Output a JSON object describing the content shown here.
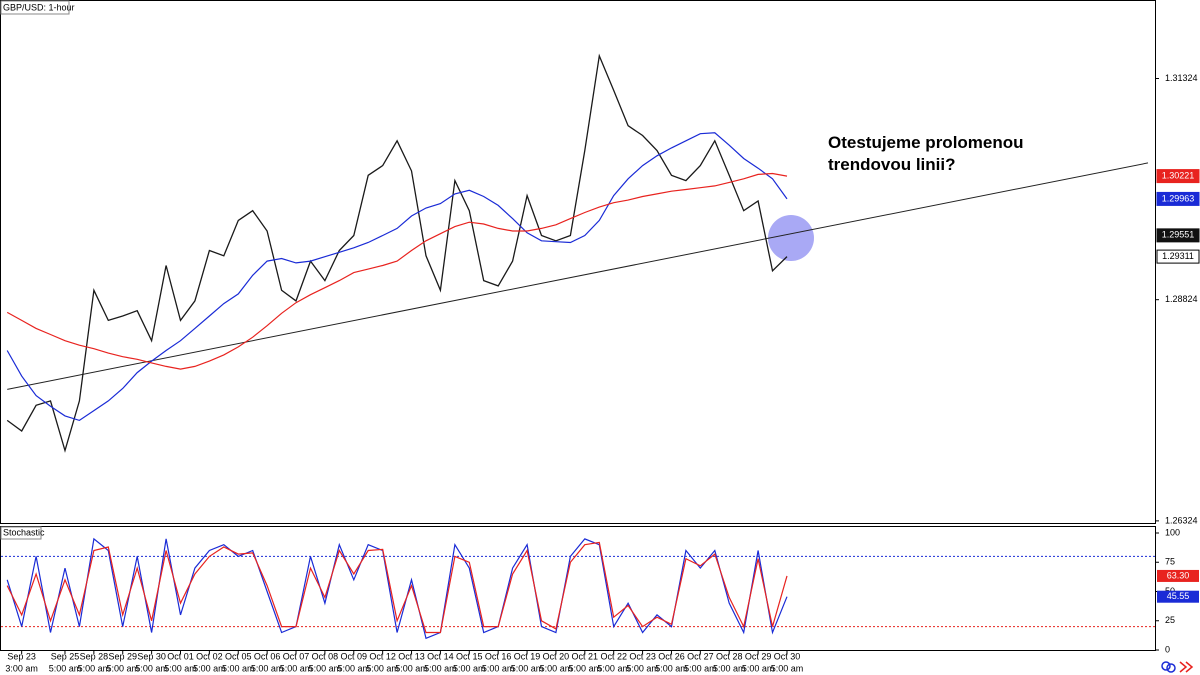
{
  "chart_data": [
    {
      "type": "line",
      "title": "GBP/USD: 1-hour",
      "annotation": [
        "Otestujeme prolomenou",
        "trendovou linii?"
      ],
      "categories": [
        null,
        "Sep 23",
        null,
        null,
        "Sep 25",
        null,
        "Sep 28",
        null,
        "Sep 29",
        null,
        "Sep 30",
        null,
        "Oct 01",
        null,
        "Oct 02",
        null,
        "Oct 05",
        null,
        "Oct 06",
        null,
        "Oct 07",
        null,
        "Oct 08",
        null,
        "Oct 09",
        null,
        "Oct 12",
        null,
        "Oct 13",
        null,
        "Oct 14",
        null,
        "Oct 15",
        null,
        "Oct 16",
        null,
        "Oct 19",
        null,
        "Oct 20",
        null,
        "Oct 21",
        null,
        "Oct 22",
        null,
        "Oct 23",
        null,
        "Oct 26",
        null,
        "Oct 27",
        null,
        "Oct 28",
        null,
        "Oct 29",
        null,
        "Oct 30",
        null
      ],
      "category_times": [
        null,
        "3:00 am",
        null,
        null,
        "5:00 am",
        null,
        "5:00 am",
        null,
        "5:00 am",
        null,
        "5:00 am",
        null,
        "5:00 am",
        null,
        "5:00 am",
        null,
        "5:00 am",
        null,
        "5:00 am",
        null,
        "5:00 am",
        null,
        "5:00 am",
        null,
        "5:00 am",
        null,
        "5:00 am",
        null,
        "5:00 am",
        null,
        "5:00 am",
        null,
        "5:00 am",
        null,
        "5:00 am",
        null,
        "5:00 am",
        null,
        "5:00 am",
        null,
        "5:00 am",
        null,
        "5:00 am",
        null,
        "5:00 am",
        null,
        "5:00 am",
        null,
        "5:00 am",
        null,
        "5:00 am",
        null,
        "5:00 am",
        null,
        "5:00 am",
        null
      ],
      "series": [
        {
          "color": "#1a1a1a",
          "values": [
            1.2746,
            1.2734,
            1.2763,
            1.2768,
            1.2712,
            1.2768,
            1.2893,
            1.2859,
            1.2864,
            1.287,
            1.2836,
            1.2921,
            1.2859,
            1.2881,
            1.2938,
            1.2932,
            1.2972,
            1.2983,
            1.296,
            1.2893,
            1.2881,
            1.2926,
            1.2904,
            1.2938,
            1.2955,
            1.3023,
            1.3034,
            1.3062,
            1.3028,
            1.2932,
            1.2893,
            1.3017,
            1.2983,
            1.2904,
            1.2898,
            1.2926,
            1.3,
            1.2955,
            1.2949,
            1.2955,
            1.3051,
            1.3158,
            1.3119,
            1.3079,
            1.3068,
            1.3051,
            1.3023,
            1.3017,
            1.3034,
            1.3062,
            1.3023,
            1.2983,
            1.2994,
            1.2915,
            1.29311,
            null
          ]
        },
        {
          "color": "#1a2bd6",
          "values": [
            1.2825,
            1.2796,
            1.2774,
            1.2762,
            1.2751,
            1.2746,
            1.2757,
            1.2768,
            1.2782,
            1.28,
            1.2813,
            1.2825,
            1.2836,
            1.285,
            1.2864,
            1.2878,
            1.2889,
            1.291,
            1.2926,
            1.2929,
            1.2924,
            1.2926,
            1.2931,
            1.2936,
            1.2941,
            1.2947,
            1.2955,
            1.2963,
            1.2977,
            1.2986,
            1.2991,
            1.3002,
            1.3006,
            1.2999,
            1.2989,
            1.2974,
            1.2958,
            1.2949,
            1.2948,
            1.2947,
            1.2955,
            1.2972,
            1.3,
            1.3019,
            1.3034,
            1.3045,
            1.3054,
            1.3062,
            1.307,
            1.3071,
            1.3057,
            1.3042,
            1.3031,
            1.3019,
            1.29963,
            null
          ]
        },
        {
          "color": "#e8231f",
          "values": [
            1.2868,
            1.2859,
            1.285,
            1.2843,
            1.2836,
            1.2831,
            1.2827,
            1.2822,
            1.2818,
            1.2815,
            1.2811,
            1.2807,
            1.2804,
            1.2807,
            1.2813,
            1.282,
            1.2829,
            1.284,
            1.2853,
            1.2867,
            1.2879,
            1.2888,
            1.2896,
            1.2904,
            1.2913,
            1.2917,
            1.2921,
            1.2926,
            1.2938,
            1.2949,
            1.2957,
            1.2965,
            1.297,
            1.2968,
            1.2963,
            1.296,
            1.296,
            1.2963,
            1.2967,
            1.2974,
            1.2981,
            1.2987,
            1.2992,
            1.2995,
            1.2999,
            1.3002,
            1.3005,
            1.3007,
            1.3009,
            1.3011,
            1.3015,
            1.3019,
            1.3024,
            1.3025,
            1.30221,
            null
          ]
        }
      ],
      "trendline": {
        "x": [
          0,
          79
        ],
        "values": [
          1.2781,
          1.3037
        ],
        "color": "#222222"
      },
      "price_markers": [
        {
          "value": 1.30221,
          "color": "#e8231f"
        },
        {
          "value": 1.29963,
          "color": "#1a2bd6"
        },
        {
          "value": 1.29551,
          "color": "#111111"
        },
        {
          "value": 1.29311,
          "color": "#ffffff"
        }
      ],
      "ylim": [
        1.263,
        1.322
      ],
      "yticks": [
        1.31324,
        1.28824,
        1.26324
      ]
    },
    {
      "type": "line",
      "title": "Stochastic",
      "series": [
        {
          "color": "#1a2bd6",
          "values": [
            60,
            20,
            80,
            15,
            70,
            20,
            95,
            85,
            20,
            80,
            15,
            95,
            30,
            70,
            85,
            90,
            80,
            85,
            50,
            15,
            20,
            80,
            40,
            90,
            60,
            90,
            85,
            15,
            60,
            10,
            15,
            90,
            70,
            15,
            20,
            70,
            90,
            20,
            15,
            80,
            95,
            90,
            20,
            40,
            15,
            30,
            20,
            85,
            70,
            85,
            40,
            15,
            85,
            15,
            45.55,
            null
          ]
        },
        {
          "color": "#e8231f",
          "values": [
            55,
            30,
            65,
            25,
            60,
            30,
            85,
            88,
            30,
            70,
            25,
            85,
            40,
            65,
            80,
            88,
            82,
            83,
            55,
            20,
            20,
            70,
            45,
            85,
            65,
            85,
            86,
            25,
            55,
            15,
            15,
            80,
            75,
            20,
            20,
            65,
            85,
            25,
            18,
            75,
            90,
            92,
            28,
            38,
            20,
            28,
            22,
            78,
            72,
            82,
            45,
            20,
            78,
            20,
            63.3,
            null
          ]
        }
      ],
      "levels": [
        {
          "value": 80,
          "color": "#1a2bd6"
        },
        {
          "value": 20,
          "color": "#e8231f"
        }
      ],
      "last_values": [
        {
          "value": 63.3,
          "label": "63.30",
          "color": "#e8231f"
        },
        {
          "value": 45.55,
          "color": "#1a2bd6"
        }
      ],
      "ylim": [
        0,
        100
      ],
      "yticks": [
        100,
        75,
        50,
        25,
        0
      ]
    }
  ]
}
